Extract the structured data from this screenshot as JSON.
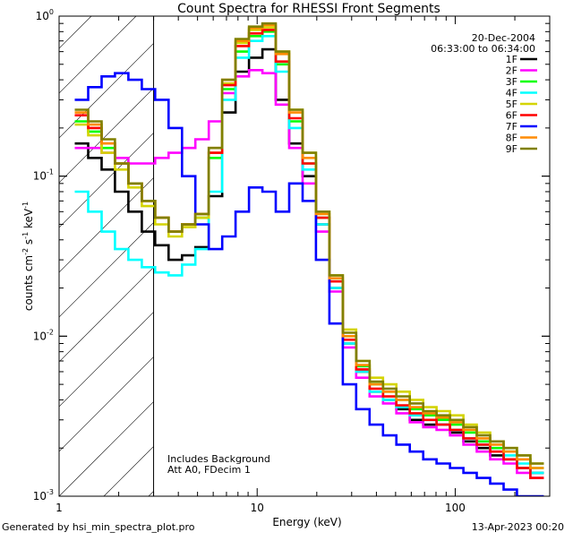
{
  "chart_data": {
    "type": "line",
    "title": "Count Spectra for RHESSI Front Segments",
    "xlabel": "Energy (keV)",
    "ylabel_parts": {
      "a": "counts cm",
      "b": "-2",
      "c": " s",
      "d": "-1",
      "e": " keV",
      "f": "-1"
    },
    "x_scale": "log",
    "y_scale": "log",
    "xlim": [
      1,
      300
    ],
    "ylim": [
      0.001,
      1
    ],
    "x_ticks": [
      {
        "value": 1,
        "label": "1"
      },
      {
        "value": 10,
        "label": "10"
      },
      {
        "value": 100,
        "label": "100"
      }
    ],
    "y_ticks": [
      {
        "value": 1,
        "base": "10",
        "exp": "0"
      },
      {
        "value": 0.1,
        "base": "10",
        "exp": "-1"
      },
      {
        "value": 0.01,
        "base": "10",
        "exp": "-2"
      },
      {
        "value": 0.001,
        "base": "10",
        "exp": "-3"
      }
    ],
    "hatch_region": [
      1,
      3
    ],
    "date": "20-Dec-2004",
    "time_range": "06:33:00 to 06:34:00",
    "annotations": [
      "Includes Background",
      "Att A0, FDecim 1"
    ],
    "series": [
      {
        "name": "1F",
        "color": "#000000",
        "values": [
          0.16,
          0.13,
          0.11,
          0.08,
          0.06,
          0.045,
          0.037,
          0.03,
          0.032,
          0.036,
          0.075,
          0.25,
          0.45,
          0.55,
          0.62,
          0.3,
          0.16,
          0.1,
          0.05,
          0.02,
          0.009,
          0.006,
          0.0045,
          0.004,
          0.0035,
          0.003,
          0.0028,
          0.0028,
          0.0025,
          0.0022,
          0.002,
          0.0018,
          0.0017,
          0.0015,
          0.0014
        ]
      },
      {
        "name": "2F",
        "color": "#ff00ff",
        "values": [
          0.15,
          0.15,
          0.14,
          0.13,
          0.12,
          0.12,
          0.13,
          0.14,
          0.15,
          0.17,
          0.22,
          0.33,
          0.42,
          0.46,
          0.44,
          0.28,
          0.15,
          0.09,
          0.045,
          0.019,
          0.0085,
          0.0055,
          0.0042,
          0.0038,
          0.0033,
          0.0029,
          0.0027,
          0.0026,
          0.0024,
          0.0021,
          0.0019,
          0.0017,
          0.0016,
          0.0014,
          0.0013
        ]
      },
      {
        "name": "3F",
        "color": "#00ff00",
        "values": [
          0.22,
          0.19,
          0.15,
          0.12,
          0.09,
          0.07,
          0.055,
          0.045,
          0.05,
          0.055,
          0.13,
          0.35,
          0.6,
          0.75,
          0.8,
          0.5,
          0.22,
          0.12,
          0.055,
          0.022,
          0.01,
          0.0065,
          0.005,
          0.0045,
          0.004,
          0.0035,
          0.0032,
          0.003,
          0.0028,
          0.0025,
          0.0022,
          0.002,
          0.0019,
          0.0017,
          0.0015
        ]
      },
      {
        "name": "4F",
        "color": "#00ffff",
        "values": [
          0.08,
          0.06,
          0.045,
          0.035,
          0.03,
          0.027,
          0.025,
          0.024,
          0.028,
          0.035,
          0.08,
          0.3,
          0.55,
          0.7,
          0.75,
          0.45,
          0.2,
          0.11,
          0.05,
          0.02,
          0.009,
          0.006,
          0.0045,
          0.004,
          0.0036,
          0.0032,
          0.003,
          0.0028,
          0.0026,
          0.0023,
          0.0021,
          0.0019,
          0.0018,
          0.0016,
          0.0014
        ]
      },
      {
        "name": "5F",
        "color": "#d4d400",
        "values": [
          0.21,
          0.18,
          0.14,
          0.11,
          0.085,
          0.065,
          0.05,
          0.042,
          0.048,
          0.055,
          0.14,
          0.38,
          0.68,
          0.82,
          0.85,
          0.6,
          0.26,
          0.14,
          0.06,
          0.024,
          0.011,
          0.007,
          0.0055,
          0.005,
          0.0045,
          0.004,
          0.0036,
          0.0034,
          0.0032,
          0.0028,
          0.0025,
          0.0022,
          0.002,
          0.0018,
          0.0016
        ]
      },
      {
        "name": "6F",
        "color": "#ff0000",
        "values": [
          0.24,
          0.2,
          0.16,
          0.12,
          0.09,
          0.07,
          0.055,
          0.045,
          0.05,
          0.058,
          0.14,
          0.37,
          0.65,
          0.78,
          0.82,
          0.52,
          0.23,
          0.12,
          0.055,
          0.022,
          0.0095,
          0.0062,
          0.0047,
          0.0042,
          0.0037,
          0.0033,
          0.003,
          0.0028,
          0.0026,
          0.0023,
          0.0021,
          0.0019,
          0.0017,
          0.0015,
          0.0013
        ]
      },
      {
        "name": "7F",
        "color": "#0000ff",
        "values": [
          0.3,
          0.36,
          0.42,
          0.44,
          0.4,
          0.35,
          0.3,
          0.2,
          0.1,
          0.05,
          0.035,
          0.042,
          0.06,
          0.085,
          0.08,
          0.06,
          0.09,
          0.07,
          0.03,
          0.012,
          0.005,
          0.0035,
          0.0028,
          0.0024,
          0.0021,
          0.0019,
          0.0017,
          0.0016,
          0.0015,
          0.0014,
          0.0013,
          0.0012,
          0.0011,
          0.001,
          0.001
        ]
      },
      {
        "name": "8F",
        "color": "#ff8c00",
        "values": [
          0.25,
          0.21,
          0.16,
          0.12,
          0.09,
          0.07,
          0.055,
          0.045,
          0.05,
          0.058,
          0.15,
          0.4,
          0.7,
          0.84,
          0.88,
          0.58,
          0.25,
          0.13,
          0.058,
          0.023,
          0.01,
          0.0066,
          0.005,
          0.0045,
          0.004,
          0.0036,
          0.0033,
          0.0031,
          0.0029,
          0.0026,
          0.0023,
          0.0021,
          0.0019,
          0.0017,
          0.0015
        ]
      },
      {
        "name": "9F",
        "color": "#808000",
        "values": [
          0.26,
          0.22,
          0.17,
          0.12,
          0.09,
          0.07,
          0.055,
          0.045,
          0.05,
          0.058,
          0.15,
          0.4,
          0.72,
          0.86,
          0.9,
          0.6,
          0.26,
          0.14,
          0.06,
          0.024,
          0.0105,
          0.007,
          0.0052,
          0.0047,
          0.0042,
          0.0038,
          0.0034,
          0.0032,
          0.003,
          0.0027,
          0.0024,
          0.0022,
          0.002,
          0.0018,
          0.0016
        ]
      }
    ]
  },
  "footer": {
    "left": "Generated by hsi_min_spectra_plot.pro",
    "right": "13-Apr-2023 00:20"
  }
}
